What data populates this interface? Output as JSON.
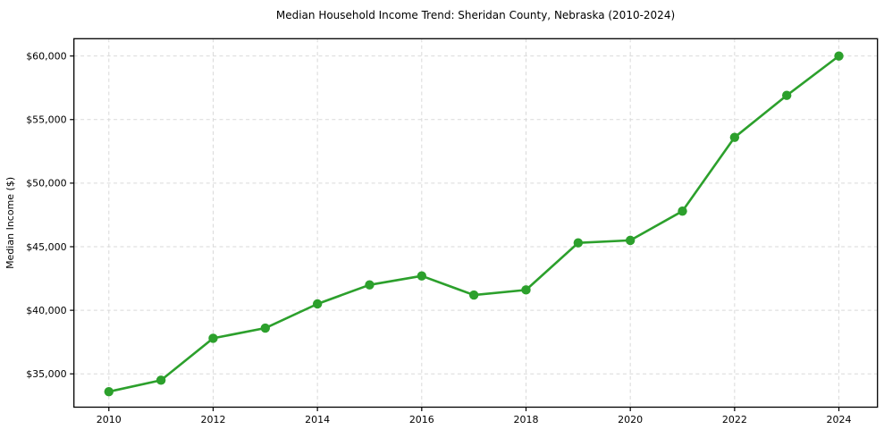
{
  "figure": {
    "title": "Median Household Income Trend: Sheridan County, Nebraska (2010-2024)"
  },
  "chart_data": {
    "type": "line",
    "title": "Median Household Income Trend: Sheridan County, Nebraska (2010-2024)",
    "xlabel": "",
    "ylabel": "Median Income ($)",
    "x": [
      2010,
      2011,
      2012,
      2013,
      2014,
      2015,
      2016,
      2017,
      2018,
      2019,
      2020,
      2021,
      2022,
      2023,
      2024
    ],
    "values": [
      33600,
      34500,
      37800,
      38600,
      40500,
      42000,
      42700,
      41200,
      41600,
      45300,
      45500,
      47800,
      53600,
      56900,
      60000
    ],
    "xticks": [
      2010,
      2012,
      2014,
      2016,
      2018,
      2020,
      2022,
      2024
    ],
    "xtick_labels": [
      "2010",
      "2012",
      "2014",
      "2016",
      "2018",
      "2020",
      "2022",
      "2024"
    ],
    "yticks": [
      35000,
      40000,
      45000,
      50000,
      55000,
      60000
    ],
    "ytick_labels": [
      "$35,000",
      "$40,000",
      "$45,000",
      "$50,000",
      "$55,000",
      "$60,000"
    ],
    "xlim": [
      2009.33,
      2024.74
    ],
    "ylim": [
      32380,
      61360
    ],
    "grid": true,
    "grid_style": "dashed",
    "legend": "none",
    "line_color": "#2ca02c",
    "marker": "circle",
    "marker_color": "#2ca02c",
    "grid_color": "#d9d9d9",
    "spine_color": "#000000",
    "background_color": "#ffffff",
    "text_color": "#000000"
  }
}
